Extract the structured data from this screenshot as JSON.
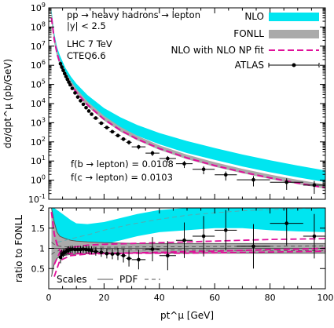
{
  "chart_data": [
    {
      "type": "line",
      "panel": "top",
      "ylabel": "dσ/dpt^μ (pb/GeV)",
      "yscale": "log",
      "xlim": [
        0,
        100
      ],
      "ylim_exp": [
        -1,
        9
      ],
      "ytick_exponents": [
        -1,
        0,
        1,
        2,
        3,
        4,
        5,
        6,
        7,
        8,
        9
      ],
      "annotations": {
        "process": "pp → heavy hadrons → lepton",
        "rapidity": "|y| < 2.5",
        "energy": "LHC 7 TeV",
        "pdf": "CTEQ6.6",
        "frac_b": "f(b → lepton) = 0.0108",
        "frac_c": "f(c → lepton) = 0.0103"
      },
      "legend": {
        "position": "top-right",
        "nlo": "NLO",
        "fonll": "FONLL",
        "nlo_np": "NLO with NLO NP fit",
        "atlas": "ATLAS"
      },
      "colors": {
        "nlo": "#00e5f0",
        "fonll": "#aaaaaa",
        "nlo_np": "#e0109a",
        "data": "#000000"
      },
      "nlo_band": {
        "x": [
          1,
          2,
          3,
          4,
          6,
          8,
          10,
          14,
          20,
          26,
          32,
          40,
          50,
          60,
          70,
          80,
          90,
          100
        ],
        "y_low": [
          300000000.0,
          15000000.0,
          2800000.0,
          1000000.0,
          260000.0,
          90000.0,
          38000.0,
          9500.0,
          1900.0,
          560,
          210,
          75,
          26,
          11.5,
          5.2,
          2.6,
          1.4,
          0.8
        ],
        "y_high": [
          800000000.0,
          50000000.0,
          9000000.0,
          3400000.0,
          750000.0,
          260000.0,
          110000.0,
          28000.0,
          5800.0,
          1900.0,
          760,
          290,
          110,
          48,
          22,
          11,
          5.8,
          3.2
        ]
      },
      "fonll_band": {
        "x": [
          1,
          2,
          3,
          4,
          6,
          8,
          10,
          14,
          20,
          26,
          32,
          40,
          50,
          60,
          70,
          80,
          90,
          100
        ],
        "y_low": [
          200000000.0,
          15000000.0,
          3000000.0,
          1000000.0,
          250000.0,
          80000.0,
          32000.0,
          7200.0,
          1300.0,
          340,
          120,
          38,
          12.5,
          5.0,
          2.3,
          1.15,
          0.62,
          0.36
        ],
        "y_high": [
          600000000.0,
          38000000.0,
          6500000.0,
          2100000.0,
          480000.0,
          155000.0,
          60000.0,
          13000.0,
          2300.0,
          600,
          210,
          66,
          21.5,
          8.6,
          3.9,
          1.95,
          1.05,
          0.6
        ]
      },
      "nlo_np": {
        "x": [
          1,
          2,
          3,
          4,
          6,
          8,
          10,
          14,
          20,
          26,
          32,
          40,
          50,
          60,
          70,
          80,
          90,
          100
        ],
        "y": [
          300000000.0,
          22000000.0,
          4200000.0,
          1350000.0,
          310000.0,
          98000.0,
          39000.0,
          8600.0,
          1500.0,
          400,
          140,
          45,
          14.5,
          5.8,
          2.65,
          1.32,
          0.7,
          0.4
        ]
      },
      "atlas": {
        "x": [
          4.25,
          4.75,
          5.25,
          5.75,
          6.25,
          6.75,
          7.25,
          7.75,
          8.5,
          9.5,
          10.5,
          11.5,
          12.5,
          13.5,
          14.5,
          15.5,
          17,
          19,
          21,
          23,
          25,
          27,
          29,
          32.5,
          37.5,
          43,
          49,
          56,
          64,
          74,
          86,
          96
        ],
        "xerr": [
          0.25,
          0.25,
          0.25,
          0.25,
          0.25,
          0.25,
          0.25,
          0.25,
          0.5,
          0.5,
          0.5,
          0.5,
          0.5,
          0.5,
          0.5,
          0.5,
          1,
          1,
          1,
          1,
          1,
          1,
          1,
          2.5,
          2.5,
          3,
          3,
          4,
          4,
          6,
          6,
          4
        ],
        "y": [
          1200000.0,
          800000.0,
          540000.0,
          370000.0,
          260000.0,
          185000.0,
          132000.0,
          96000.0,
          62000.0,
          36000.0,
          22000.0,
          14000.0,
          9200.0,
          6100.0,
          4100.0,
          2800.0,
          1750.0,
          950,
          560,
          340,
          215,
          140,
          95,
          55,
          26,
          13.5,
          7.2,
          3.7,
          1.9,
          1.05,
          0.78,
          0.55
        ],
        "yerr_rel": [
          0.3,
          0.25,
          0.2,
          0.18,
          0.16,
          0.15,
          0.14,
          0.13,
          0.12,
          0.12,
          0.12,
          0.12,
          0.12,
          0.13,
          0.13,
          0.14,
          0.15,
          0.16,
          0.17,
          0.18,
          0.2,
          0.22,
          0.24,
          0.26,
          0.3,
          0.35,
          0.4,
          0.45,
          0.5,
          0.55,
          0.6,
          0.65
        ]
      }
    },
    {
      "type": "line",
      "panel": "bottom",
      "xlabel": "pt^μ [GeV]",
      "ylabel": "ratio to FONLL",
      "xlim": [
        0,
        100
      ],
      "ylim": [
        0,
        2
      ],
      "xticks": [
        0,
        20,
        40,
        60,
        80,
        100
      ],
      "yticks": [
        0.5,
        1,
        1.5,
        2
      ],
      "legend": {
        "position": "bottom-left",
        "scales": "Scales",
        "pdf": "PDF"
      },
      "nlo_ratio_band": {
        "x": [
          1,
          2,
          3,
          4,
          6,
          8,
          10,
          14,
          20,
          26,
          32,
          40,
          50,
          60,
          70,
          80,
          90,
          100
        ],
        "y_low": [
          0.9,
          0.82,
          0.85,
          0.9,
          0.94,
          0.96,
          1.0,
          1.05,
          1.1,
          1.2,
          1.3,
          1.4,
          1.45,
          1.5,
          1.5,
          1.45,
          1.42,
          1.4
        ],
        "y_high": [
          2.0,
          2.0,
          1.95,
          1.9,
          1.8,
          1.7,
          1.62,
          1.6,
          1.65,
          1.75,
          1.85,
          1.95,
          2.0,
          2.0,
          2.0,
          2.0,
          2.0,
          2.0
        ]
      },
      "scales_band": {
        "x": [
          1,
          2,
          3,
          4,
          6,
          8,
          10,
          14,
          20,
          26,
          32,
          40,
          50,
          60,
          70,
          80,
          90,
          100
        ],
        "y_low": [
          0.3,
          0.62,
          0.75,
          0.8,
          0.83,
          0.85,
          0.86,
          0.87,
          0.88,
          0.88,
          0.88,
          0.88,
          0.88,
          0.88,
          0.88,
          0.88,
          0.88,
          0.88
        ],
        "y_high": [
          2.0,
          1.65,
          1.4,
          1.3,
          1.24,
          1.2,
          1.18,
          1.16,
          1.14,
          1.13,
          1.12,
          1.12,
          1.12,
          1.12,
          1.12,
          1.12,
          1.12,
          1.12
        ]
      },
      "pdf_band": {
        "x": [
          1,
          2,
          3,
          4,
          6,
          8,
          10,
          14,
          20,
          26,
          32,
          40,
          50,
          60,
          70,
          80,
          90,
          100
        ],
        "y_low": [
          0.85,
          0.9,
          0.93,
          0.95,
          0.96,
          0.965,
          0.97,
          0.97,
          0.97,
          0.97,
          0.965,
          0.96,
          0.96,
          0.955,
          0.95,
          0.95,
          0.945,
          0.94
        ],
        "y_high": [
          1.15,
          1.1,
          1.07,
          1.05,
          1.04,
          1.035,
          1.03,
          1.03,
          1.03,
          1.03,
          1.035,
          1.04,
          1.04,
          1.045,
          1.05,
          1.05,
          1.055,
          1.06
        ]
      },
      "nlo_np_ratio": {
        "x": [
          1,
          2,
          3,
          4,
          6,
          8,
          10,
          14,
          20,
          26,
          32,
          40,
          50,
          60,
          70,
          80,
          90,
          100
        ],
        "y": [
          1.9,
          1.35,
          1.1,
          0.95,
          0.88,
          0.87,
          0.87,
          0.88,
          0.88,
          0.88,
          0.89,
          0.9,
          0.92,
          0.93,
          0.95,
          0.97,
          0.98,
          1.0
        ]
      },
      "nlo_np_dashed_upper": {
        "x": [
          2,
          4,
          8,
          14,
          20,
          30,
          40,
          50,
          60,
          70,
          80,
          90,
          100
        ],
        "y": [
          0.6,
          0.9,
          1.02,
          1.08,
          1.1,
          1.12,
          1.14,
          1.16,
          1.18,
          1.2,
          1.22,
          1.23,
          1.24
        ]
      },
      "nlo_np_dashed_lower": {
        "x": [
          2,
          4,
          8,
          14,
          20,
          30,
          40,
          50,
          60,
          70,
          80,
          90,
          100
        ],
        "y": [
          0.3,
          0.7,
          0.82,
          0.86,
          0.87,
          0.88,
          0.88,
          0.88,
          0.89,
          0.9,
          0.91,
          0.92,
          0.93
        ]
      },
      "nlo_center_dashed": {
        "x": [
          3,
          6,
          10,
          15,
          20,
          30,
          40,
          50,
          60,
          70,
          80,
          90,
          100
        ],
        "y": [
          1.15,
          1.2,
          1.27,
          1.35,
          1.45,
          1.6,
          1.72,
          1.82,
          1.88,
          1.93,
          1.96,
          1.98,
          2.0
        ]
      },
      "atlas_ratio": {
        "x": [
          4.25,
          4.75,
          5.25,
          5.75,
          6.25,
          6.75,
          7.25,
          7.75,
          8.5,
          9.5,
          10.5,
          11.5,
          12.5,
          13.5,
          14.5,
          15.5,
          17,
          19,
          21,
          23,
          25,
          27,
          29,
          32.5,
          37.5,
          43,
          49,
          56,
          64,
          74,
          86,
          96
        ],
        "xerr": [
          0.25,
          0.25,
          0.25,
          0.25,
          0.25,
          0.25,
          0.25,
          0.25,
          0.5,
          0.5,
          0.5,
          0.5,
          0.5,
          0.5,
          0.5,
          0.5,
          1,
          1,
          1,
          1,
          1,
          1,
          1,
          2.5,
          2.5,
          3,
          3,
          4,
          4,
          6,
          6,
          4
        ],
        "y": [
          0.78,
          0.85,
          0.88,
          0.9,
          0.92,
          0.95,
          0.96,
          0.97,
          0.98,
          0.97,
          0.97,
          0.97,
          0.98,
          0.97,
          0.96,
          0.95,
          0.92,
          0.9,
          0.87,
          0.86,
          0.86,
          0.82,
          0.75,
          0.72,
          0.98,
          0.82,
          1.2,
          1.3,
          1.45,
          1.05,
          1.62,
          1.3
        ],
        "yerr": [
          0.15,
          0.12,
          0.1,
          0.09,
          0.09,
          0.09,
          0.09,
          0.09,
          0.09,
          0.09,
          0.09,
          0.09,
          0.09,
          0.1,
          0.1,
          0.1,
          0.1,
          0.11,
          0.12,
          0.13,
          0.15,
          0.17,
          0.2,
          0.24,
          0.3,
          0.36,
          0.44,
          0.5,
          0.5,
          0.55,
          0.55,
          0.55
        ]
      }
    }
  ]
}
